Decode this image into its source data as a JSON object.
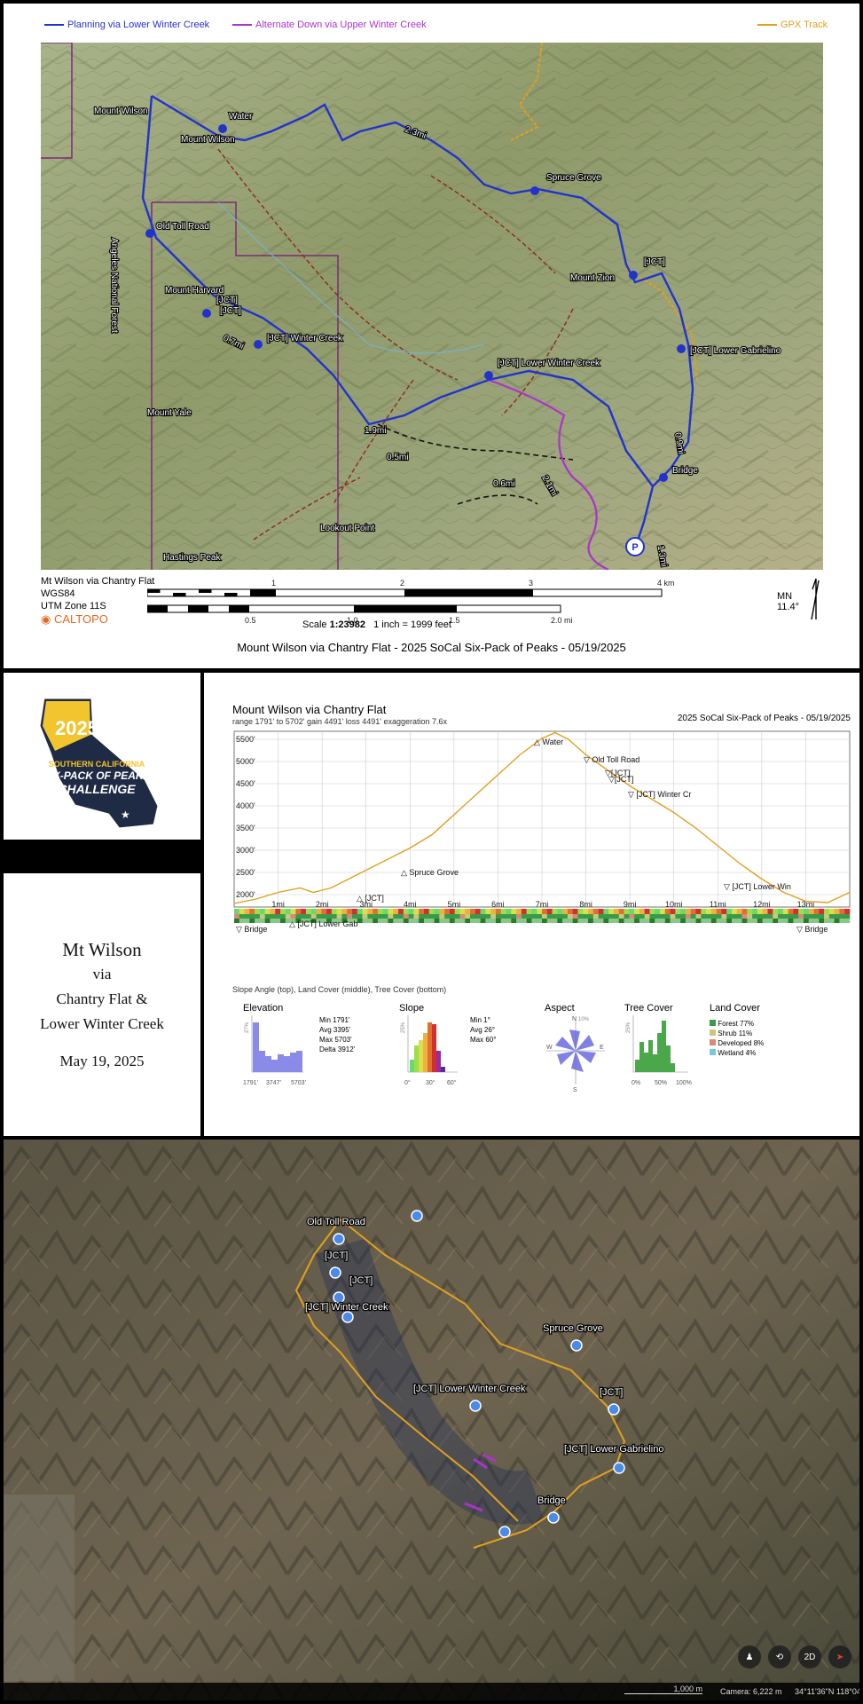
{
  "legend": {
    "planning": {
      "label": "Planning via Lower Winter Creek",
      "color": "#2233cc"
    },
    "alternate": {
      "label": "Alternate Down via Upper Winter Creek",
      "color": "#aa33cc"
    },
    "gpx": {
      "label": "GPX Track",
      "color": "#e0a020"
    }
  },
  "map": {
    "labels": {
      "mount_wilson": "Mount Wilson",
      "water": "Water",
      "mount_wilson_2": "Mount Wilson",
      "old_toll_road": "Old Toll Road",
      "mount_harvard": "Mount Harvard",
      "jct_a": "[JCT]",
      "jct_b": "[JCT]",
      "jct_winter_creek": "[JCT] Winter Creek",
      "spruce_grove": "Spruce Grove",
      "mount_zion": "Mount Zion",
      "jct_c": "[JCT]",
      "jct_lower_gabrielino": "[JCT] Lower Gabrielino",
      "jct_lower_winter_creek": "[JCT] Lower Winter Creek",
      "mount_yale": "Mount Yale",
      "bridge": "Bridge",
      "lookout_point": "Lookout Point",
      "hastings_peak": "Hastings Peak",
      "forest_label": "Angeles National Forest",
      "dist_23": "2.3mi",
      "dist_19": "1.9mi",
      "dist_21": "2.1mi",
      "dist_05": "0.5mi",
      "dist_06": "0.6mi",
      "dist_07": "0.7mi",
      "dist_09": "0.9mi",
      "dist_13": "1.3mi",
      "parking": "P"
    },
    "footer": {
      "name": "Mt Wilson via Chantry Flat",
      "datum": "WGS84",
      "utm": "UTM Zone 11S",
      "brand": "CALTOPO",
      "km_ticks": [
        "1",
        "2",
        "3",
        "4 km"
      ],
      "mi_ticks": [
        "0.5",
        "1.0",
        "1.5",
        "2.0 mi"
      ],
      "scale_prefix": "Scale ",
      "scale_value": "1:23982",
      "scale_inch": "1 inch = 1999 feet",
      "mn": "MN",
      "declination": "11.4°"
    },
    "title": "Mount Wilson via Chantry Flat - 2025 SoCal Six-Pack of Peaks - 05/19/2025"
  },
  "logo": {
    "year": "2025",
    "line1": "SOUTHERN CALIFORNIA",
    "line2": "SIX-PACK OF PEAKS",
    "line3": "CHALLENGE"
  },
  "trip_title": {
    "line1": "Mt Wilson",
    "line2": "via",
    "line3": "Chantry Flat &",
    "line4": "Lower Winter Creek",
    "date": "May 19, 2025"
  },
  "profile": {
    "title": "Mount Wilson via Chantry Flat",
    "stats": "range 1791' to 5702'  gain 4491'  loss 4491'  exaggeration 7.6x",
    "event": "2025 SoCal Six-Pack of Peaks - 05/19/2025",
    "legend_note": "Slope Angle (top), Land Cover (middle), Tree Cover (bottom)",
    "waypoints": [
      "Water",
      "Old Toll Road",
      "[JCT]",
      "[JCT]",
      "[JCT] Winter Cr",
      "Spruce Grove",
      "[JCT]",
      "[JCT] Lower Win",
      "[JCT] Lower Gab",
      "Bridge",
      "Bridge"
    ],
    "stats_panel": {
      "elevation_title": "Elevation",
      "elev_hist_ticks": [
        "1791'",
        "3747'",
        "5703'"
      ],
      "elev_min": "Min   1791'",
      "elev_avg": "Avg   3395'",
      "elev_max": "Max   5703'",
      "elev_delta": "Delta  3912'",
      "slope_title": "Slope",
      "slope_ticks": [
        "0°",
        "30°",
        "60°"
      ],
      "slope_pct": "25%",
      "slope_min": "Min    1°",
      "slope_avg": "Avg   26°",
      "slope_max": "Max   60°",
      "aspect_title": "Aspect",
      "aspect_pct": "10%",
      "aspect_dirs": [
        "N",
        "E",
        "S",
        "W"
      ],
      "tree_title": "Tree Cover",
      "tree_ticks": [
        "0%",
        "50%",
        "100%"
      ],
      "tree_pct": "25%",
      "elev_pct": "27%",
      "land_title": "Land Cover",
      "land_items": [
        {
          "label": "Forest 77%",
          "color": "#3a9a4a"
        },
        {
          "label": "Shrub 11%",
          "color": "#c8c87a"
        },
        {
          "label": "Developed 8%",
          "color": "#d88a7a"
        },
        {
          "label": "Wetland 4%",
          "color": "#7ac8e0"
        }
      ]
    }
  },
  "chart_data": {
    "type": "area",
    "title": "Mount Wilson via Chantry Flat",
    "xlabel": "",
    "ylabel": "",
    "x_unit": "mi",
    "y_unit": "ft",
    "xlim": [
      0,
      14
    ],
    "ylim": [
      1800,
      5600
    ],
    "x_ticks": [
      "1mi",
      "2mi",
      "3mi",
      "4mi",
      "5mi",
      "6mi",
      "7mi",
      "8mi",
      "9mi",
      "10mi",
      "11mi",
      "12mi",
      "13mi"
    ],
    "y_ticks": [
      "2000'",
      "2500'",
      "3000'",
      "3500'",
      "4000'",
      "4500'",
      "5000'",
      "5500'"
    ],
    "grid": true,
    "series": [
      {
        "x": [
          0,
          0.5,
          1.0,
          1.5,
          1.8,
          2.2,
          2.6,
          3.0,
          3.5,
          4.0,
          4.5,
          5.0,
          5.5,
          6.0,
          6.5,
          7.0,
          7.3,
          7.6,
          8.0,
          8.5,
          9.0,
          9.5,
          10.0,
          10.5,
          11.0,
          11.5,
          12.0,
          12.5,
          13.0,
          13.5,
          14.0
        ],
        "y": [
          1800,
          1900,
          2050,
          2150,
          2050,
          2150,
          2350,
          2550,
          2800,
          3050,
          3350,
          3800,
          4250,
          4700,
          5150,
          5520,
          5650,
          5500,
          5150,
          4800,
          4450,
          4150,
          3850,
          3500,
          3100,
          2700,
          2350,
          2050,
          1850,
          1820,
          2050
        ]
      }
    ],
    "stats": {
      "min_ft": 1791,
      "max_ft": 5702,
      "gain_ft": 4491,
      "loss_ft": 4491
    }
  },
  "earth": {
    "labels": {
      "old_toll_road": "Old Toll Road",
      "jct1": "[JCT]",
      "jct2": "[JCT]",
      "jct_winter_creek": "[JCT] Winter Creek",
      "spruce_grove": "Spruce Grove",
      "jct_lower_winter_creek": "[JCT] Lower Winter Creek",
      "jct3": "[JCT]",
      "jct_lower_gabrielino": "[JCT] Lower Gabrielino",
      "bridge": "Bridge"
    },
    "scale": "1,000 m",
    "camera": "Camera: 6,222 m",
    "coords": "34°11'36\"N 118°04'",
    "btn_2d": "2D"
  }
}
